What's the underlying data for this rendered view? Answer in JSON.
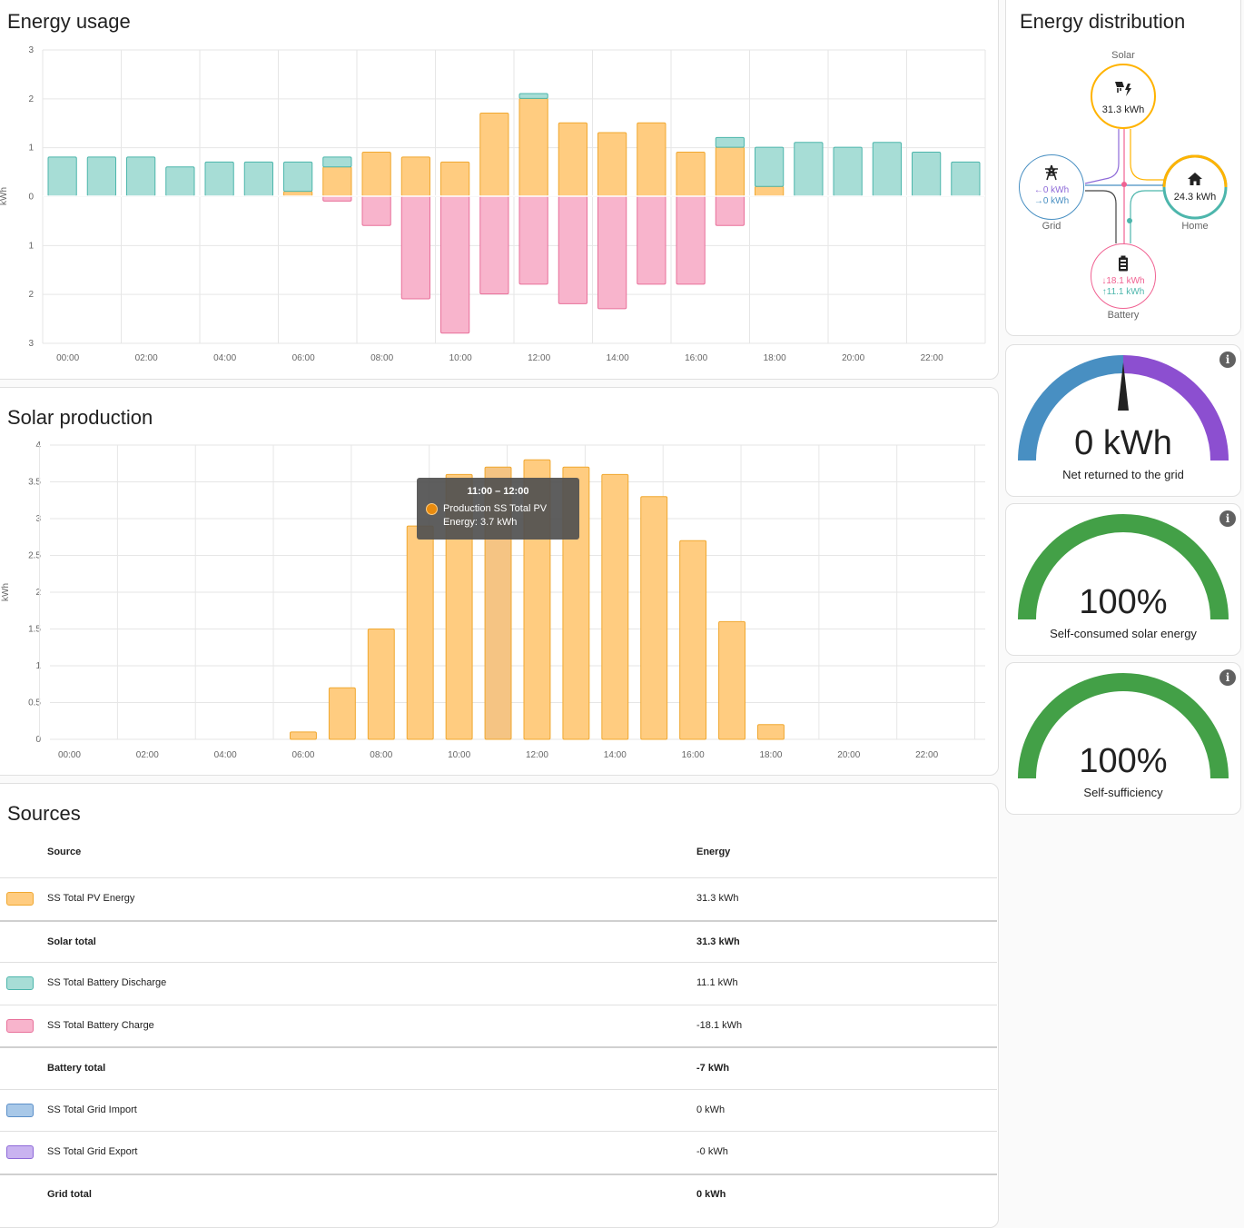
{
  "energy_usage": {
    "title": "Energy usage",
    "chart_data": {
      "type": "bar",
      "stacked": true,
      "ylabel": "kWh",
      "ylim": [
        -3,
        3
      ],
      "y_ticks": [
        3,
        2,
        1,
        0,
        1,
        2,
        3
      ],
      "x_tick_labels": [
        "00:00",
        "02:00",
        "04:00",
        "06:00",
        "08:00",
        "10:00",
        "12:00",
        "14:00",
        "16:00",
        "18:00",
        "20:00",
        "22:00"
      ],
      "hours": [
        0,
        1,
        2,
        3,
        4,
        5,
        6,
        7,
        8,
        9,
        10,
        11,
        12,
        13,
        14,
        15,
        16,
        17,
        18,
        19,
        20,
        21,
        22,
        23
      ],
      "series": [
        {
          "name": "SS Total PV Energy",
          "color": "#ffcc80",
          "stroke": "#f0a830",
          "values": [
            0,
            0,
            0,
            0,
            0,
            0,
            0.1,
            0.6,
            0.9,
            0.8,
            0.7,
            1.7,
            2.0,
            1.5,
            1.3,
            1.5,
            0.9,
            1.0,
            0.2,
            0,
            0,
            0,
            0,
            0
          ]
        },
        {
          "name": "SS Total Battery Discharge",
          "color": "#a7ddd6",
          "stroke": "#4db6ac",
          "values": [
            0.8,
            0.8,
            0.8,
            0.6,
            0.7,
            0.7,
            0.6,
            0.2,
            0,
            0,
            0,
            0,
            0.1,
            0,
            0,
            0,
            0,
            0.2,
            0.8,
            1.1,
            1.0,
            1.1,
            0.9,
            0.7
          ]
        },
        {
          "name": "SS Total Battery Charge",
          "color": "#f8b4cc",
          "stroke": "#e8709a",
          "values": [
            0,
            0,
            0,
            0,
            0,
            0,
            0,
            -0.1,
            -0.6,
            -2.1,
            -2.8,
            -2.0,
            -1.8,
            -2.2,
            -2.3,
            -1.8,
            -1.8,
            -0.6,
            0,
            0,
            0,
            0,
            0,
            0
          ]
        }
      ]
    }
  },
  "solar_production": {
    "title": "Solar production",
    "chart_data": {
      "type": "bar",
      "ylabel": "kWh",
      "ylim": [
        0,
        4
      ],
      "y_ticks": [
        "4",
        "3.5",
        "3",
        "2.5",
        "2",
        "1.5",
        "1",
        "0.5",
        "0"
      ],
      "x_tick_labels": [
        "00:00",
        "02:00",
        "04:00",
        "06:00",
        "08:00",
        "10:00",
        "12:00",
        "14:00",
        "16:00",
        "18:00",
        "20:00",
        "22:00"
      ],
      "series": [
        {
          "name": "Production SS Total PV",
          "color": "#ffcc80",
          "stroke": "#f0a830",
          "values": [
            0,
            0,
            0,
            0,
            0,
            0,
            0.1,
            0.7,
            1.5,
            2.9,
            3.6,
            3.7,
            3.8,
            3.7,
            3.6,
            3.3,
            2.7,
            1.6,
            0.2,
            0,
            0,
            0,
            0,
            0
          ]
        }
      ],
      "highlighted_index": 11
    },
    "tooltip": {
      "title": "11:00 – 12:00",
      "series": "Production SS Total PV",
      "line": "Energy: 3.7 kWh"
    }
  },
  "sources": {
    "title": "Sources",
    "columns": {
      "source": "Source",
      "energy": "Energy"
    },
    "rows": [
      {
        "name": "SS Total PV Energy",
        "value": "31.3 kWh",
        "swatch": "#ffcc80",
        "swatch_border": "#f0a830",
        "total": false
      },
      {
        "name": "Solar total",
        "value": "31.3 kWh",
        "total": true
      },
      {
        "name": "SS Total Battery Discharge",
        "value": "11.1 kWh",
        "swatch": "#a7ddd6",
        "swatch_border": "#4db6ac",
        "total": false
      },
      {
        "name": "SS Total Battery Charge",
        "value": "-18.1 kWh",
        "swatch": "#f8b4cc",
        "swatch_border": "#e8709a",
        "total": false
      },
      {
        "name": "Battery total",
        "value": "-7 kWh",
        "total": true
      },
      {
        "name": "SS Total Grid Import",
        "value": "0 kWh",
        "swatch": "#a8c8e8",
        "swatch_border": "#5b8fc8",
        "total": false
      },
      {
        "name": "SS Total Grid Export",
        "value": "-0 kWh",
        "swatch": "#c9b3f0",
        "swatch_border": "#8e6ad8",
        "total": false
      },
      {
        "name": "Grid total",
        "value": "0 kWh",
        "total": true
      }
    ]
  },
  "energy_distribution": {
    "title": "Energy distribution",
    "solar": {
      "label": "Solar",
      "value": "31.3 kWh",
      "color": "#ffb300",
      "icon": "solar-power-icon"
    },
    "grid": {
      "label": "Grid",
      "in_value": "0 kWh",
      "out_value": "0 kWh",
      "color": "#488fc2",
      "icon": "transmission-tower-icon"
    },
    "home": {
      "label": "Home",
      "value": "24.3 kWh",
      "icon": "home-icon"
    },
    "battery": {
      "label": "Battery",
      "in_value": "18.1 kWh",
      "out_value": "11.1 kWh",
      "color": "#f06292",
      "icon": "battery-icon"
    }
  },
  "gauges": [
    {
      "value": "0 kWh",
      "label": "Net returned to the grid",
      "kind": "grid",
      "level": 0.5
    },
    {
      "value": "100%",
      "label": "Self-consumed solar energy",
      "kind": "percent",
      "level": 1.0
    },
    {
      "value": "100%",
      "label": "Self-sufficiency",
      "kind": "percent",
      "level": 1.0
    }
  ]
}
